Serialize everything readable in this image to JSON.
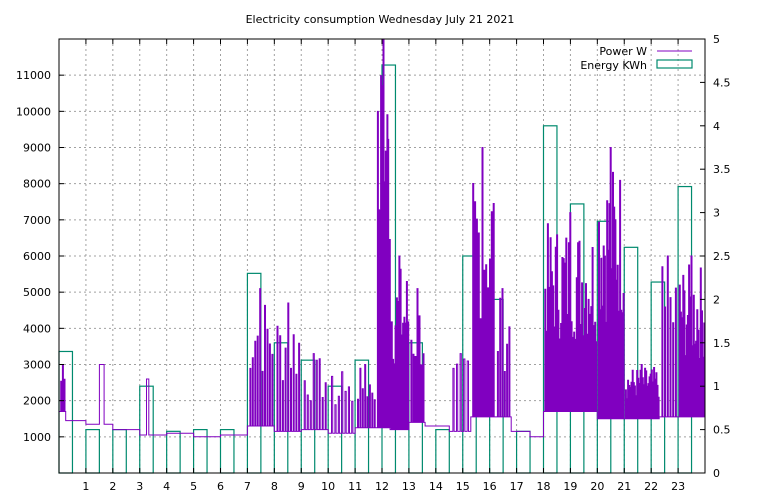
{
  "colors": {
    "power": "#8000c0",
    "energy": "#008a6e",
    "grid": "#a0a0a0",
    "frame": "#000000"
  },
  "chart_data": {
    "type": "line",
    "title": "Electricity consumption Wednesday July 21 2021",
    "grid": true,
    "legend_position": "top-right",
    "xlim": [
      0,
      24
    ],
    "ylim": [
      0,
      12000
    ],
    "y2lim": [
      0,
      5
    ],
    "x_ticks": [
      1,
      2,
      3,
      4,
      5,
      6,
      7,
      8,
      9,
      10,
      11,
      12,
      13,
      14,
      15,
      16,
      17,
      18,
      19,
      20,
      21,
      22,
      23
    ],
    "y_ticks": [
      1000,
      2000,
      3000,
      4000,
      5000,
      6000,
      7000,
      8000,
      9000,
      10000,
      11000
    ],
    "y2_ticks": [
      0,
      0.5,
      1,
      1.5,
      2,
      2.5,
      3,
      3.5,
      4,
      4.5,
      5
    ],
    "series": [
      {
        "name": "Power W",
        "axis": "y1",
        "segments": [
          {
            "from": 0.0,
            "to": 0.25,
            "base": 1700,
            "peak": 3000,
            "spikes": 3
          },
          {
            "from": 0.25,
            "to": 1.0,
            "base": 1450,
            "peak": 1600,
            "spikes": 0
          },
          {
            "from": 1.0,
            "to": 2.0,
            "base": 1350,
            "peak": 3000,
            "spikes": 1
          },
          {
            "from": 2.0,
            "to": 3.0,
            "base": 1200,
            "peak": 1350,
            "spikes": 0
          },
          {
            "from": 3.0,
            "to": 3.5,
            "base": 1050,
            "peak": 2600,
            "spikes": 1
          },
          {
            "from": 3.5,
            "to": 4.0,
            "base": 1050,
            "peak": 1100,
            "spikes": 0
          },
          {
            "from": 4.0,
            "to": 5.0,
            "base": 1100,
            "peak": 1150,
            "spikes": 0
          },
          {
            "from": 5.0,
            "to": 6.0,
            "base": 1000,
            "peak": 1100,
            "spikes": 0
          },
          {
            "from": 6.0,
            "to": 7.0,
            "base": 1050,
            "peak": 1150,
            "spikes": 0
          },
          {
            "from": 7.0,
            "to": 8.0,
            "base": 1300,
            "peak": 5100,
            "spikes": 10
          },
          {
            "from": 8.0,
            "to": 9.0,
            "base": 1150,
            "peak": 4700,
            "spikes": 9
          },
          {
            "from": 9.0,
            "to": 10.0,
            "base": 1200,
            "peak": 3300,
            "spikes": 8
          },
          {
            "from": 10.0,
            "to": 11.0,
            "base": 1100,
            "peak": 2800,
            "spikes": 7
          },
          {
            "from": 11.0,
            "to": 11.8,
            "base": 1250,
            "peak": 3000,
            "spikes": 8
          },
          {
            "from": 11.8,
            "to": 12.3,
            "base": 1250,
            "peak": 12000,
            "spikes": 16
          },
          {
            "from": 12.3,
            "to": 13.0,
            "base": 1200,
            "peak": 6000,
            "spikes": 14
          },
          {
            "from": 13.0,
            "to": 13.6,
            "base": 1400,
            "peak": 5100,
            "spikes": 7
          },
          {
            "from": 13.6,
            "to": 14.5,
            "base": 1300,
            "peak": 1350,
            "spikes": 0
          },
          {
            "from": 14.5,
            "to": 15.3,
            "base": 1150,
            "peak": 3300,
            "spikes": 5
          },
          {
            "from": 15.3,
            "to": 16.2,
            "base": 1550,
            "peak": 9000,
            "spikes": 12
          },
          {
            "from": 16.2,
            "to": 16.8,
            "base": 1550,
            "peak": 5100,
            "spikes": 6
          },
          {
            "from": 16.8,
            "to": 17.5,
            "base": 1150,
            "peak": 1200,
            "spikes": 0
          },
          {
            "from": 17.5,
            "to": 18.0,
            "base": 1000,
            "peak": 1050,
            "spikes": 0
          },
          {
            "from": 18.0,
            "to": 20.0,
            "base": 1700,
            "peak": 7200,
            "spikes": 40
          },
          {
            "from": 20.0,
            "to": 21.0,
            "base": 1500,
            "peak": 9000,
            "spikes": 22
          },
          {
            "from": 21.0,
            "to": 22.3,
            "base": 1500,
            "peak": 3000,
            "spikes": 30
          },
          {
            "from": 22.3,
            "to": 23.0,
            "base": 1550,
            "peak": 6000,
            "spikes": 6
          },
          {
            "from": 23.0,
            "to": 24.0,
            "base": 1550,
            "peak": 6000,
            "spikes": 22
          }
        ]
      },
      {
        "name": "Energy KWh",
        "axis": "y2",
        "bar_width": 0.5,
        "x": [
          0,
          1,
          2,
          3,
          4,
          5,
          6,
          7,
          8,
          9,
          10,
          11,
          12,
          13,
          14,
          15,
          16,
          17,
          18,
          19,
          20,
          21,
          22,
          23
        ],
        "values": [
          1.4,
          0.5,
          0.5,
          1.0,
          0.48,
          0.5,
          0.5,
          2.3,
          1.5,
          1.3,
          1.0,
          1.3,
          4.7,
          1.5,
          0.5,
          2.5,
          2.0,
          0.48,
          4.0,
          3.1,
          2.9,
          2.6,
          2.2,
          3.3
        ]
      }
    ]
  }
}
